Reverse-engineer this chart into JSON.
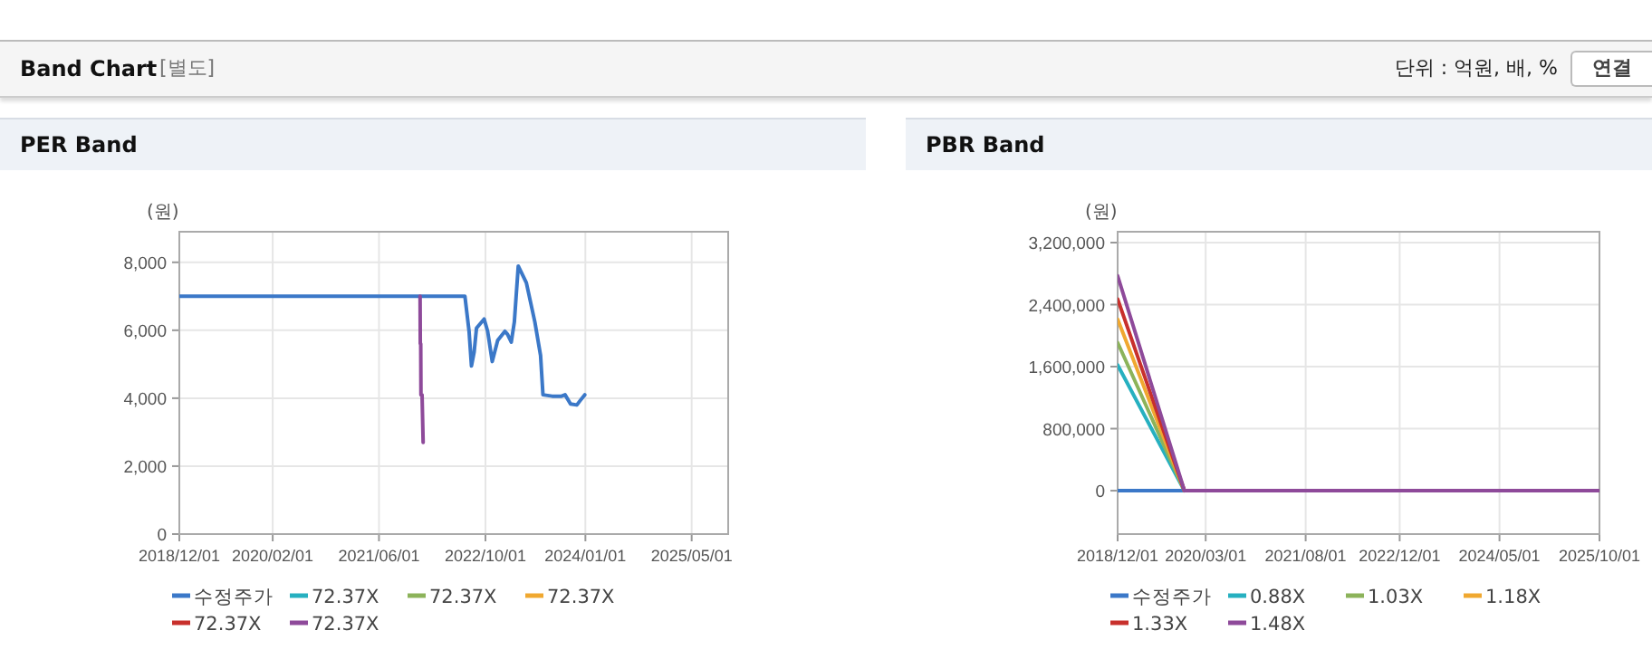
{
  "chart_data": [
    {
      "type": "other",
      "title": "Band Chart",
      "annotations": [
        "[별도]",
        "단위 : 억원, 배, %",
        "연결"
      ]
    },
    {
      "type": "line",
      "title": "PER Band",
      "ylabel": "(원)",
      "xlim": [
        "2018-12-01",
        "2025-10-15"
      ],
      "ylim": [
        0,
        8900
      ],
      "xticks": [
        {
          "value": "2018-12-01",
          "label": "2018/12/01"
        },
        {
          "value": "2020-02-01",
          "label": "2020/02/01"
        },
        {
          "value": "2021-06-01",
          "label": "2021/06/01"
        },
        {
          "value": "2022-10-01",
          "label": "2022/10/01"
        },
        {
          "value": "2024-01-01",
          "label": "2024/01/01"
        },
        {
          "value": "2025-05-01",
          "label": "2025/05/01"
        }
      ],
      "yticks": [
        {
          "value": 0,
          "label": "0"
        },
        {
          "value": 2000,
          "label": "2,000"
        },
        {
          "value": 4000,
          "label": "4,000"
        },
        {
          "value": 6000,
          "label": "6,000"
        },
        {
          "value": 8000,
          "label": "8,000"
        }
      ],
      "grid": true,
      "legend": "bottom",
      "marker": "none",
      "line_style": "solid",
      "series": [
        {
          "name": "수정주가",
          "color": "#3b78c8",
          "x": [
            "2018-12-01",
            "2022-06-29",
            "2022-07-18",
            "2022-07-29",
            "2022-08-10",
            "2022-08-21",
            "2022-09-25",
            "2022-10-11",
            "2022-11-01",
            "2022-11-26",
            "2022-12-29",
            "2023-01-10",
            "2023-01-27",
            "2023-02-10",
            "2023-02-28",
            "2023-04-06",
            "2023-05-15",
            "2023-06-10",
            "2023-06-21",
            "2023-08-02",
            "2023-09-14",
            "2023-09-30",
            "2023-10-25",
            "2023-11-23",
            "2023-12-07",
            "2023-12-29"
          ],
          "values": [
            7000,
            7000,
            5970,
            4950,
            5350,
            6060,
            6330,
            5970,
            5080,
            5700,
            5970,
            5880,
            5650,
            6240,
            7890,
            7400,
            6240,
            5260,
            4100,
            4060,
            4060,
            4100,
            3830,
            3800,
            3920,
            4100
          ]
        },
        {
          "name": "72.37X",
          "color": "#26b0c0"
        },
        {
          "name": "72.37X",
          "color": "#8cb35a"
        },
        {
          "name": "72.37X",
          "color": "#f0a830"
        },
        {
          "name": "72.37X",
          "color": "#c8302c"
        },
        {
          "name": "72.37X",
          "color": "#8e4a9a",
          "x": [
            "2021-12-06",
            "2021-12-07",
            "2021-12-09",
            "2021-12-10",
            "2021-12-14",
            "2021-12-15",
            "2021-12-20"
          ],
          "values": [
            7000,
            5600,
            5600,
            4100,
            4100,
            4100,
            2700
          ]
        }
      ]
    },
    {
      "type": "line",
      "title": "PBR Band",
      "ylabel": "(원)",
      "xlim": [
        "2018-12-01",
        "2025-10-01"
      ],
      "ylim": [
        -560000,
        3340000
      ],
      "xticks": [
        {
          "value": "2018-12-01",
          "label": "2018/12/01"
        },
        {
          "value": "2020-03-01",
          "label": "2020/03/01"
        },
        {
          "value": "2021-08-01",
          "label": "2021/08/01"
        },
        {
          "value": "2022-12-01",
          "label": "2022/12/01"
        },
        {
          "value": "2024-05-01",
          "label": "2024/05/01"
        },
        {
          "value": "2025-10-01",
          "label": "2025/10/01"
        }
      ],
      "yticks": [
        {
          "value": 0,
          "label": "0"
        },
        {
          "value": 800000,
          "label": "800,000"
        },
        {
          "value": 1600000,
          "label": "1,600,000"
        },
        {
          "value": 2400000,
          "label": "2,400,000"
        },
        {
          "value": 3200000,
          "label": "3,200,000"
        }
      ],
      "grid": true,
      "legend": "bottom",
      "marker": "none",
      "line_style": "solid",
      "series": [
        {
          "name": "수정주가",
          "color": "#3b78c8",
          "x": [
            "2018-12-01",
            "2019-11-12"
          ],
          "values": [
            0,
            0
          ]
        },
        {
          "name": "0.88X",
          "color": "#26b0c0",
          "x": [
            "2018-12-01",
            "2019-11-12"
          ],
          "values": [
            1620000,
            0
          ]
        },
        {
          "name": "1.03X",
          "color": "#8cb35a",
          "x": [
            "2018-12-01",
            "2019-11-12"
          ],
          "values": [
            1910000,
            0
          ]
        },
        {
          "name": "1.18X",
          "color": "#f0a830",
          "x": [
            "2018-12-01",
            "2019-11-12"
          ],
          "values": [
            2210000,
            0
          ]
        },
        {
          "name": "1.33X",
          "color": "#c8302c",
          "x": [
            "2018-12-01",
            "2019-11-12"
          ],
          "values": [
            2470000,
            0
          ]
        },
        {
          "name": "1.48X",
          "color": "#8e4a9a",
          "x": [
            "2018-12-01",
            "2019-11-12",
            "2025-10-01"
          ],
          "values": [
            2770000,
            0,
            0
          ]
        }
      ]
    }
  ]
}
